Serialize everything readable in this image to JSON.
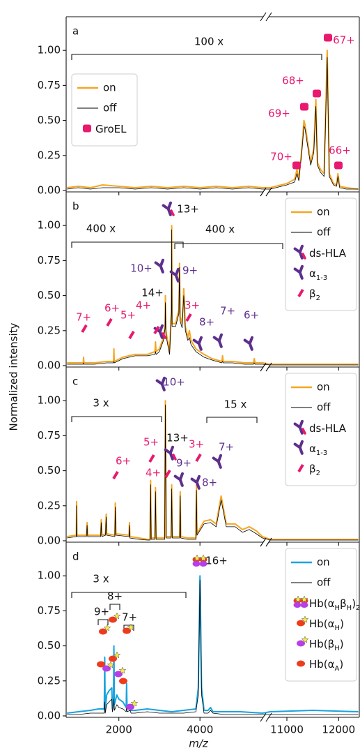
{
  "chart_data": [
    {
      "type": "line",
      "panel_label": "a",
      "legend": "upper left",
      "xlim_segments": [
        [
          700,
          5560
        ],
        [
          10650,
          12400
        ]
      ],
      "ylim": [
        -0.01,
        1.24
      ],
      "yticks": [
        {
          "value": 0,
          "label": "0.00"
        },
        {
          "value": 0.25,
          "label": "0.25"
        },
        {
          "value": 0.5,
          "label": "0.50"
        },
        {
          "value": 0.75,
          "label": "0.75"
        },
        {
          "value": 1,
          "label": "1.00"
        }
      ],
      "x": [
        720,
        1000,
        1300,
        1600,
        2000,
        2400,
        2800,
        3200,
        3600,
        4000,
        4400,
        4800,
        5200,
        5540,
        10680,
        11000,
        11150,
        11195,
        11230,
        11290,
        11330,
        11350,
        11400,
        11460,
        11520,
        11560,
        11590,
        11650,
        11720,
        11780,
        11820,
        11900,
        11960,
        11987,
        12020,
        12150,
        12380
      ],
      "series": [
        {
          "name": "on",
          "color": "#f5a623",
          "values": [
            0.02,
            0.03,
            0.02,
            0.04,
            0.03,
            0.02,
            0.03,
            0.02,
            0.03,
            0.02,
            0.03,
            0.02,
            0.03,
            0.02,
            0.02,
            0.05,
            0.08,
            0.15,
            0.08,
            0.3,
            0.5,
            0.47,
            0.35,
            0.2,
            0.3,
            0.65,
            0.2,
            0.15,
            0.12,
            1.0,
            0.12,
            0.05,
            0.04,
            0.12,
            0.03,
            0.02,
            0.01
          ]
        },
        {
          "name": "off",
          "color": "#000000",
          "values": [
            0.01,
            0.02,
            0.01,
            0.02,
            0.02,
            0.01,
            0.02,
            0.01,
            0.02,
            0.01,
            0.02,
            0.01,
            0.02,
            0.01,
            0.01,
            0.04,
            0.06,
            0.12,
            0.07,
            0.28,
            0.46,
            0.44,
            0.32,
            0.18,
            0.27,
            0.6,
            0.18,
            0.13,
            0.1,
            0.95,
            0.1,
            0.04,
            0.03,
            0.1,
            0.02,
            0.01,
            0.01
          ]
        }
      ],
      "legend_icons": [
        {
          "label": [
            {
              "text": "GroEL"
            }
          ]
        }
      ],
      "annotations": [
        {
          "text": "100 x",
          "color": "#111111"
        },
        {
          "text": "67+",
          "color": "#e8196e"
        },
        {
          "text": "68+",
          "color": "#e8196e"
        },
        {
          "text": "69+",
          "color": "#e8196e"
        },
        {
          "text": "70+",
          "color": "#e8196e"
        },
        {
          "text": "66+",
          "color": "#e8196e"
        }
      ]
    },
    {
      "type": "line",
      "panel_label": "b",
      "legend": "upper right",
      "xlim_segments": [
        [
          700,
          5560
        ],
        [
          10650,
          12400
        ]
      ],
      "ylim": [
        -0.01,
        1.24
      ],
      "yticks": [
        {
          "value": 0,
          "label": "0.00"
        },
        {
          "value": 0.25,
          "label": "0.25"
        },
        {
          "value": 0.5,
          "label": "0.50"
        },
        {
          "value": 0.75,
          "label": "0.75"
        },
        {
          "value": 1,
          "label": "1.00"
        }
      ],
      "x": [
        720,
        1000,
        1120,
        1130,
        1140,
        1400,
        1700,
        1870,
        1878,
        1886,
        2100,
        2400,
        2700,
        2890,
        2904,
        2918,
        3000,
        3100,
        3140,
        3148,
        3160,
        3250,
        3296,
        3304,
        3312,
        3400,
        3480,
        3496,
        3510,
        3560,
        3600,
        3640,
        3700,
        3739,
        3780,
        3900,
        4100,
        4300,
        4540,
        4557,
        4575,
        4800,
        5100,
        5320,
        5339,
        5360,
        5540,
        10680,
        11500,
        12380
      ],
      "series": [
        {
          "name": "on",
          "color": "#f5a623",
          "values": [
            0.02,
            0.02,
            0.02,
            0.06,
            0.02,
            0.02,
            0.03,
            0.03,
            0.12,
            0.03,
            0.06,
            0.08,
            0.08,
            0.1,
            0.17,
            0.1,
            0.12,
            0.2,
            0.3,
            0.5,
            0.25,
            0.1,
            0.4,
            1.0,
            0.3,
            0.3,
            0.4,
            0.73,
            0.35,
            0.3,
            0.55,
            0.28,
            0.2,
            0.25,
            0.18,
            0.12,
            0.08,
            0.05,
            0.03,
            0.07,
            0.03,
            0.03,
            0.02,
            0.02,
            0.05,
            0.02,
            0.02,
            0.01,
            0.01,
            0.01
          ]
        },
        {
          "name": "off",
          "color": "#000000",
          "values": [
            0.01,
            0.01,
            0.01,
            0.02,
            0.01,
            0.01,
            0.02,
            0.02,
            0.03,
            0.02,
            0.05,
            0.07,
            0.07,
            0.08,
            0.1,
            0.08,
            0.1,
            0.18,
            0.27,
            0.45,
            0.22,
            0.08,
            0.38,
            0.97,
            0.28,
            0.28,
            0.37,
            0.7,
            0.32,
            0.27,
            0.5,
            0.25,
            0.18,
            0.2,
            0.15,
            0.1,
            0.06,
            0.04,
            0.02,
            0.03,
            0.02,
            0.02,
            0.01,
            0.01,
            0.02,
            0.01,
            0.01,
            0.005,
            0.005,
            0.005
          ]
        }
      ],
      "legend_icons": [
        {
          "label": [
            {
              "text": "ds-HLA"
            }
          ]
        },
        {
          "label": [
            {
              "text": "α"
            },
            {
              "sub": "1-3"
            }
          ]
        },
        {
          "label": [
            {
              "text": "β"
            },
            {
              "sub": "2"
            }
          ]
        }
      ],
      "annotations": [
        {
          "text": "13+",
          "color": "#111111"
        },
        {
          "text": "400 x",
          "color": "#111111"
        },
        {
          "text": "400 x",
          "color": "#111111"
        },
        {
          "text": "10+",
          "color": "#5e2f8c"
        },
        {
          "text": "9+",
          "color": "#5e2f8c"
        },
        {
          "text": "14+",
          "color": "#111111"
        },
        {
          "text": "4+",
          "color": "#e8196e"
        },
        {
          "text": "5+",
          "color": "#e8196e"
        },
        {
          "text": "6+",
          "color": "#e8196e"
        },
        {
          "text": "7+",
          "color": "#e8196e"
        },
        {
          "text": "3+",
          "color": "#e8196e"
        },
        {
          "text": "8+",
          "color": "#5e2f8c"
        },
        {
          "text": "7+",
          "color": "#5e2f8c"
        },
        {
          "text": "6+",
          "color": "#5e2f8c"
        }
      ]
    },
    {
      "type": "line",
      "panel_label": "c",
      "legend": "upper right",
      "xlim_segments": [
        [
          700,
          5560
        ],
        [
          10650,
          12400
        ]
      ],
      "ylim": [
        -0.01,
        1.24
      ],
      "yticks": [
        {
          "value": 0,
          "label": "0.00"
        },
        {
          "value": 0.25,
          "label": "0.25"
        },
        {
          "value": 0.5,
          "label": "0.50"
        },
        {
          "value": 0.75,
          "label": "0.75"
        },
        {
          "value": 1,
          "label": "1.00"
        }
      ],
      "x": [
        720,
        950,
        957,
        965,
        1200,
        1217,
        1230,
        1550,
        1565,
        1580,
        1670,
        1687,
        1700,
        1900,
        1913,
        1926,
        2250,
        2261,
        2272,
        2500,
        2700,
        2770,
        2783,
        2796,
        2890,
        2904,
        2918,
        3130,
        3148,
        3166,
        3290,
        3304,
        3318,
        3500,
        3513,
        3526,
        3700,
        3900,
        3913,
        3926,
        4100,
        4261,
        4400,
        4522,
        4650,
        4870,
        5050,
        5217,
        5391,
        5540,
        10680,
        11500,
        12380
      ],
      "series": [
        {
          "name": "on",
          "color": "#f5a623",
          "values": [
            0.03,
            0.04,
            0.28,
            0.04,
            0.04,
            0.13,
            0.04,
            0.04,
            0.15,
            0.04,
            0.05,
            0.19,
            0.05,
            0.04,
            0.27,
            0.05,
            0.04,
            0.13,
            0.03,
            0.02,
            0.01,
            0.01,
            0.43,
            0.02,
            0.02,
            0.38,
            0.02,
            0.02,
            1.0,
            0.03,
            0.03,
            0.4,
            0.03,
            0.03,
            0.35,
            0.03,
            0.02,
            0.02,
            0.4,
            0.05,
            0.14,
            0.15,
            0.12,
            0.32,
            0.12,
            0.12,
            0.08,
            0.1,
            0.07,
            0.03,
            0.01,
            0.01,
            0.01
          ]
        },
        {
          "name": "off",
          "color": "#000000",
          "values": [
            0.02,
            0.03,
            0.25,
            0.03,
            0.03,
            0.11,
            0.03,
            0.03,
            0.13,
            0.03,
            0.04,
            0.17,
            0.04,
            0.03,
            0.24,
            0.04,
            0.03,
            0.11,
            0.02,
            0.01,
            0.005,
            0.005,
            0.4,
            0.01,
            0.01,
            0.35,
            0.01,
            0.01,
            0.97,
            0.02,
            0.02,
            0.37,
            0.02,
            0.02,
            0.32,
            0.02,
            0.01,
            0.01,
            0.36,
            0.04,
            0.12,
            0.13,
            0.1,
            0.29,
            0.1,
            0.1,
            0.06,
            0.08,
            0.05,
            0.02,
            0.005,
            0.005,
            0.005
          ]
        }
      ],
      "legend_icons": [
        {
          "label": [
            {
              "text": "ds-HLA"
            }
          ]
        },
        {
          "label": [
            {
              "text": "α"
            },
            {
              "sub": "1-3"
            }
          ]
        },
        {
          "label": [
            {
              "text": "β"
            },
            {
              "sub": "2"
            }
          ]
        }
      ],
      "annotations": [
        {
          "text": "10+",
          "color": "#5e2f8c"
        },
        {
          "text": "3 x",
          "color": "#111111"
        },
        {
          "text": "15 x",
          "color": "#111111"
        },
        {
          "text": "5+",
          "color": "#e8196e"
        },
        {
          "text": "6+",
          "color": "#e8196e"
        },
        {
          "text": "4+",
          "color": "#e8196e"
        },
        {
          "text": "13+",
          "color": "#111111"
        },
        {
          "text": "3+",
          "color": "#e8196e"
        },
        {
          "text": "9+",
          "color": "#5e2f8c"
        },
        {
          "text": "7+",
          "color": "#5e2f8c"
        },
        {
          "text": "8+",
          "color": "#5e2f8c"
        }
      ]
    },
    {
      "type": "line",
      "panel_label": "d",
      "legend": "upper right",
      "xlim_segments": [
        [
          700,
          5560
        ],
        [
          10650,
          12400
        ]
      ],
      "ylim": [
        -0.01,
        1.24
      ],
      "yticks": [
        {
          "value": 0,
          "label": "0.00"
        },
        {
          "value": 0.25,
          "label": "0.25"
        },
        {
          "value": 0.5,
          "label": "0.50"
        },
        {
          "value": 0.75,
          "label": "0.75"
        },
        {
          "value": 1,
          "label": "1.00"
        }
      ],
      "xticks": [
        2000,
        4000,
        11000,
        12000
      ],
      "xlabel": "m/z",
      "ylabel": "Normalized intensity",
      "x": [
        720,
        1000,
        1300,
        1500,
        1640,
        1652,
        1664,
        1700,
        1760,
        1826,
        1840,
        1866,
        1878,
        1890,
        1950,
        2000,
        2100,
        2180,
        2191,
        2202,
        2280,
        2300,
        2400,
        2700,
        3000,
        3300,
        3600,
        3900,
        3960,
        4000,
        4040,
        4100,
        4200,
        4261,
        4320,
        4600,
        5000,
        5540,
        10680,
        11500,
        12380
      ],
      "series": [
        {
          "name": "on",
          "color": "#1aa3de",
          "values": [
            0.02,
            0.03,
            0.04,
            0.05,
            0.05,
            0.42,
            0.05,
            0.15,
            0.18,
            0.2,
            0.05,
            0.1,
            0.5,
            0.08,
            0.15,
            0.12,
            0.1,
            0.06,
            0.23,
            0.05,
            0.08,
            0.04,
            0.04,
            0.05,
            0.04,
            0.03,
            0.04,
            0.05,
            0.2,
            1.0,
            0.2,
            0.04,
            0.04,
            0.06,
            0.03,
            0.03,
            0.03,
            0.02,
            0.03,
            0.04,
            0.03
          ]
        },
        {
          "name": "off",
          "color": "#000000",
          "values": [
            0.01,
            0.01,
            0.02,
            0.02,
            0.02,
            0.1,
            0.02,
            0.08,
            0.1,
            0.12,
            0.03,
            0.06,
            0.12,
            0.04,
            0.08,
            0.06,
            0.05,
            0.03,
            0.06,
            0.03,
            0.04,
            0.02,
            0.02,
            0.03,
            0.02,
            0.02,
            0.02,
            0.03,
            0.15,
            0.97,
            0.15,
            0.02,
            0.02,
            0.04,
            0.02,
            0.01,
            0.01,
            0.01,
            0.01,
            0.01,
            0.01
          ]
        }
      ],
      "legend_icons": [
        {
          "label": [
            {
              "text": "Hb(α"
            },
            {
              "sub": "H"
            },
            {
              "text": "β"
            },
            {
              "sub": "H"
            },
            {
              "text": ")"
            },
            {
              "sub": "2"
            }
          ]
        },
        {
          "label": [
            {
              "text": "Hb(α"
            },
            {
              "sub": "H"
            },
            {
              "text": ")"
            }
          ]
        },
        {
          "label": [
            {
              "text": "Hb(β"
            },
            {
              "sub": "H"
            },
            {
              "text": ")"
            }
          ]
        },
        {
          "label": [
            {
              "text": "Hb(α"
            },
            {
              "sub": "A"
            },
            {
              "text": ")"
            }
          ]
        }
      ],
      "annotations": [
        {
          "text": "16+",
          "color": "#111111"
        },
        {
          "text": "3 x",
          "color": "#111111"
        },
        {
          "text": "9+",
          "color": "#111111"
        },
        {
          "text": "8+",
          "color": "#111111"
        },
        {
          "text": "7+",
          "color": "#111111"
        }
      ]
    }
  ]
}
